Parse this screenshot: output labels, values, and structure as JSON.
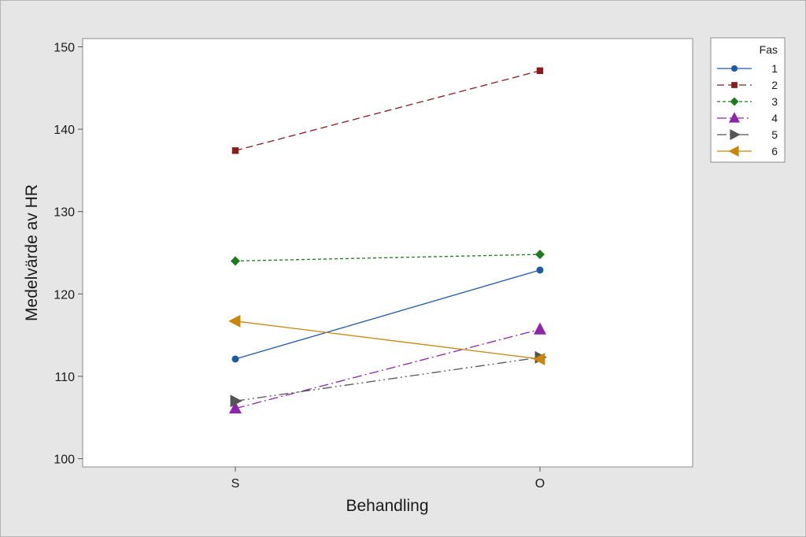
{
  "chart_data": {
    "type": "line",
    "xlabel": "Behandling",
    "ylabel": "Medelvärde av HR",
    "categories": [
      "S",
      "O"
    ],
    "ylim": [
      99,
      151
    ],
    "yticks": [
      100,
      110,
      120,
      130,
      140,
      150
    ],
    "legend": {
      "title": "Fas",
      "placement": "right"
    },
    "series": [
      {
        "name": "1",
        "values": [
          112.1,
          122.9
        ],
        "color": "#1f5aa6",
        "marker": "circle",
        "dash": ""
      },
      {
        "name": "2",
        "values": [
          137.4,
          147.1
        ],
        "color": "#8b1a1a",
        "marker": "square",
        "dash": "9,5"
      },
      {
        "name": "3",
        "values": [
          124.0,
          124.8
        ],
        "color": "#1f7a1f",
        "marker": "diamond",
        "dash": "4,3"
      },
      {
        "name": "4",
        "values": [
          106.1,
          115.7
        ],
        "color": "#8e24aa",
        "marker": "triangle-up",
        "dash": "12,4,2,4"
      },
      {
        "name": "5",
        "values": [
          107.0,
          112.3
        ],
        "color": "#555555",
        "marker": "triangle-right",
        "dash": "12,4,2,4,2,4"
      },
      {
        "name": "6",
        "values": [
          116.7,
          112.1
        ],
        "color": "#c8860a",
        "marker": "triangle-left",
        "dash": ""
      }
    ]
  }
}
